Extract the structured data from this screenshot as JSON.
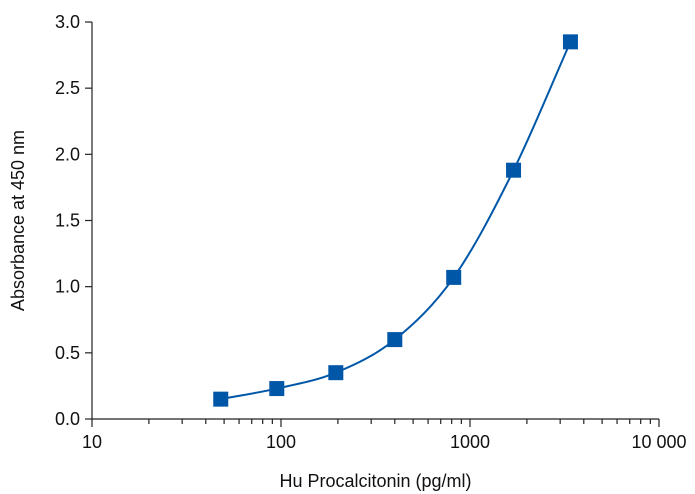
{
  "chart_data": {
    "type": "scatter",
    "title": "",
    "xlabel": "Hu Procalcitonin (pg/ml)",
    "ylabel": "Absorbance at 450 nm",
    "x_scale": "log",
    "xlim": [
      10,
      10000
    ],
    "ylim": [
      0,
      3.0
    ],
    "x_ticks": [
      10,
      100,
      1000,
      10000
    ],
    "x_tick_labels": [
      "10",
      "100",
      "1000",
      "10 000"
    ],
    "y_ticks": [
      0,
      0.5,
      1.0,
      1.5,
      2.0,
      2.5,
      3.0
    ],
    "y_tick_labels": [
      "0.0",
      "0.5",
      "1.0",
      "1.5",
      "2.0",
      "2.5",
      "3.0"
    ],
    "grid": false,
    "legend": "none",
    "marker": "square",
    "color": "#0057a8",
    "series": [
      {
        "x": [
          48,
          95,
          195,
          400,
          820,
          1700,
          3400
        ],
        "y": [
          0.15,
          0.23,
          0.35,
          0.6,
          1.07,
          1.88,
          2.85
        ],
        "fit_curve": true
      }
    ]
  }
}
